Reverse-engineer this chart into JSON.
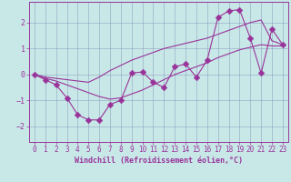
{
  "xlabel": "Windchill (Refroidissement éolien,°C)",
  "x_values": [
    0,
    1,
    2,
    3,
    4,
    5,
    6,
    7,
    8,
    9,
    10,
    11,
    12,
    13,
    14,
    15,
    16,
    17,
    18,
    19,
    20,
    21,
    22,
    23
  ],
  "line_jagged": [
    0.0,
    -0.2,
    -0.4,
    -0.9,
    -1.55,
    -1.75,
    -1.75,
    -1.15,
    -1.0,
    0.05,
    0.1,
    -0.3,
    -0.5,
    0.3,
    0.4,
    -0.1,
    0.55,
    2.2,
    2.45,
    2.5,
    1.4,
    0.05,
    1.75,
    1.15
  ],
  "line_upper": [
    0.0,
    -0.1,
    -0.15,
    -0.2,
    -0.25,
    -0.3,
    -0.1,
    0.15,
    0.35,
    0.55,
    0.7,
    0.85,
    1.0,
    1.1,
    1.2,
    1.3,
    1.4,
    1.55,
    1.7,
    1.85,
    2.0,
    2.1,
    1.3,
    1.15
  ],
  "line_lower": [
    0.0,
    -0.15,
    -0.25,
    -0.4,
    -0.55,
    -0.7,
    -0.85,
    -0.95,
    -0.9,
    -0.75,
    -0.6,
    -0.4,
    -0.2,
    0.0,
    0.15,
    0.3,
    0.45,
    0.65,
    0.8,
    0.95,
    1.05,
    1.15,
    1.1,
    1.1
  ],
  "line_color": "#993399",
  "bg_color": "#c8e8e8",
  "grid_color": "#8899bb",
  "ylim": [
    -2.6,
    2.8
  ],
  "yticks": [
    -2,
    -1,
    0,
    1,
    2
  ],
  "xticks": [
    0,
    1,
    2,
    3,
    4,
    5,
    6,
    7,
    8,
    9,
    10,
    11,
    12,
    13,
    14,
    15,
    16,
    17,
    18,
    19,
    20,
    21,
    22,
    23
  ],
  "xlabel_fontsize": 6.0,
  "tick_fontsize": 5.5,
  "linewidth": 0.8,
  "markersize": 3.5
}
